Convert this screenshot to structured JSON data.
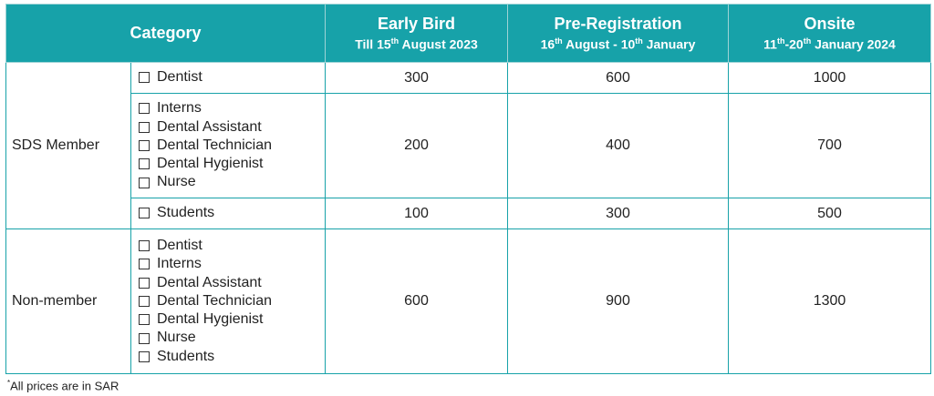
{
  "header": {
    "category": "Category",
    "early_bird": {
      "title": "Early Bird",
      "sub_pre": "Till 15",
      "sub_sup": "th",
      "sub_post": " August 2023"
    },
    "pre_registration": {
      "title": "Pre-Registration",
      "sub_pre": "16",
      "sub_sup": "th",
      "sub_mid": " August - 10",
      "sub_sup2": "th",
      "sub_post": " January"
    },
    "onsite": {
      "title": "Onsite",
      "sub_pre": "11",
      "sub_sup": "th",
      "sub_mid": "-20",
      "sub_sup2": "th",
      "sub_post": " January 2024"
    }
  },
  "groups": [
    {
      "name": "SDS Member",
      "rows": [
        {
          "items": [
            "Dentist"
          ],
          "early_bird": "300",
          "pre_registration": "600",
          "onsite": "1000"
        },
        {
          "items": [
            "Interns",
            "Dental Assistant",
            "Dental Technician",
            "Dental Hygienist",
            "Nurse"
          ],
          "early_bird": "200",
          "pre_registration": "400",
          "onsite": "700"
        },
        {
          "items": [
            "Students"
          ],
          "early_bird": "100",
          "pre_registration": "300",
          "onsite": "500"
        }
      ]
    },
    {
      "name": "Non-member",
      "rows": [
        {
          "items": [
            "Dentist",
            "Interns",
            "Dental Assistant",
            "Dental Technician",
            "Dental Hygienist",
            "Nurse",
            "Students"
          ],
          "early_bird": "600",
          "pre_registration": "900",
          "onsite": "1300"
        }
      ]
    }
  ],
  "footnote": {
    "mark": "*",
    "text": "All prices are in SAR"
  },
  "colors": {
    "header_bg": "#17a2a9",
    "border": "#17a2a9"
  },
  "icons": {
    "checkbox": "empty-checkbox-icon"
  }
}
